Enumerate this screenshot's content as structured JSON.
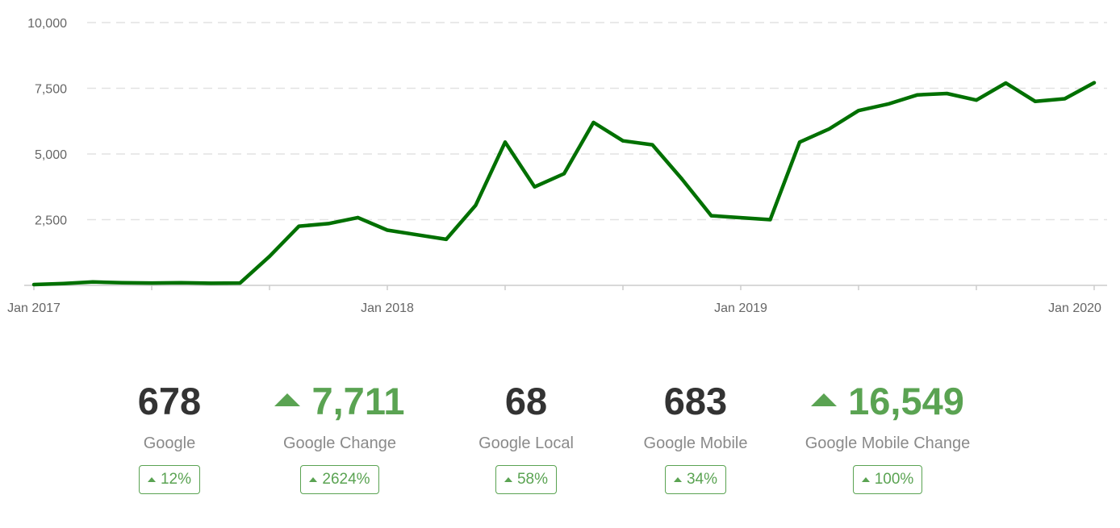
{
  "chart_data": {
    "type": "line",
    "x": [
      "2017-01",
      "2017-02",
      "2017-03",
      "2017-04",
      "2017-05",
      "2017-06",
      "2017-07",
      "2017-08",
      "2017-09",
      "2017-10",
      "2017-11",
      "2017-12",
      "2018-01",
      "2018-02",
      "2018-03",
      "2018-04",
      "2018-05",
      "2018-06",
      "2018-07",
      "2018-08",
      "2018-09",
      "2018-10",
      "2018-11",
      "2018-12",
      "2019-01",
      "2019-02",
      "2019-03",
      "2019-04",
      "2019-05",
      "2019-06",
      "2019-07",
      "2019-08",
      "2019-09",
      "2019-10",
      "2019-11",
      "2019-12",
      "2020-01"
    ],
    "series": [
      {
        "values": [
          30,
          70,
          130,
          100,
          90,
          100,
          80,
          90,
          1100,
          2250,
          2350,
          2580,
          2100,
          1750,
          3050,
          5450,
          3750,
          4250,
          6200,
          5500,
          5350,
          4050,
          2650,
          2500,
          5450,
          5950,
          6650,
          6900,
          7250,
          7300,
          7050,
          7700,
          7000,
          7100,
          7711
        ],
        "x": [
          "2017-01",
          "2017-02",
          "2017-03",
          "2017-04",
          "2017-05",
          "2017-06",
          "2017-07",
          "2017-08",
          "2017-09",
          "2017-10",
          "2017-11",
          "2017-12",
          "2018-01",
          "2018-03",
          "2018-04",
          "2018-05",
          "2018-06",
          "2018-07",
          "2018-08",
          "2018-09",
          "2018-10",
          "2018-11",
          "2018-12",
          "2019-02",
          "2019-03",
          "2019-04",
          "2019-05",
          "2019-06",
          "2019-07",
          "2019-08",
          "2019-09",
          "2019-10",
          "2019-11",
          "2019-12",
          "2020-01"
        ],
        "color": "#007000"
      }
    ],
    "xlabel": "",
    "ylabel": "",
    "ylim": [
      0,
      10000
    ],
    "yticks": [
      2500,
      5000,
      7500,
      10000
    ],
    "ytick_labels": [
      "2,500",
      "5,000",
      "7,500",
      "10,000"
    ],
    "xticks": [
      "2017-01",
      "2018-01",
      "2019-01",
      "2020-01"
    ],
    "xtick_labels": [
      "Jan 2017",
      "Jan 2018",
      "Jan 2019",
      "Jan 2020"
    ],
    "grid": true,
    "legend": "none"
  },
  "stats": [
    {
      "value": "678",
      "label": "Google",
      "change": "12%",
      "trend": "up",
      "highlight": false
    },
    {
      "value": "7,711",
      "label": "Google Change",
      "change": "2624%",
      "trend": "up",
      "highlight": true
    },
    {
      "value": "68",
      "label": "Google Local",
      "change": "58%",
      "trend": "up",
      "highlight": false
    },
    {
      "value": "683",
      "label": "Google Mobile",
      "change": "34%",
      "trend": "up",
      "highlight": false
    },
    {
      "value": "16,549",
      "label": "Google Mobile Change",
      "change": "100%",
      "trend": "up",
      "highlight": true
    }
  ],
  "colors": {
    "line": "#007000",
    "positive": "#5aa352",
    "value": "#333333",
    "label": "#8a8a8a",
    "grid": "#e2e2e2",
    "axis": "#cccccc"
  }
}
